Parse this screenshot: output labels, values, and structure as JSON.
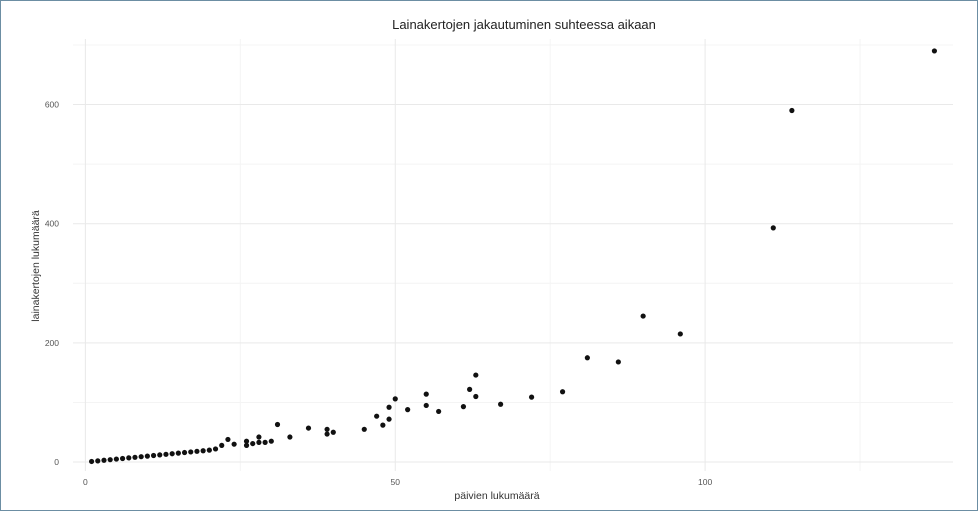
{
  "chart_data": {
    "type": "scatter",
    "title": "Lainakertojen jakautuminen suhteessa aikaan",
    "xlabel": "päivien lukumäärä",
    "ylabel": "lainakertojen lukumäärä",
    "xlim": [
      -2,
      140
    ],
    "ylim": [
      -15,
      710
    ],
    "x_ticks": [
      0,
      50,
      100
    ],
    "y_ticks": [
      0,
      200,
      400,
      600
    ],
    "x_tick_labels": [
      "0",
      "50",
      "100"
    ],
    "y_tick_labels": [
      "0",
      "200",
      "400",
      "600"
    ],
    "grid": true,
    "legend": "none",
    "point_color": "#111111",
    "series": [
      {
        "points": [
          [
            1,
            1
          ],
          [
            2,
            2
          ],
          [
            3,
            3
          ],
          [
            4,
            4
          ],
          [
            5,
            5
          ],
          [
            6,
            6
          ],
          [
            7,
            7
          ],
          [
            8,
            8
          ],
          [
            9,
            9
          ],
          [
            10,
            10
          ],
          [
            11,
            11
          ],
          [
            12,
            12
          ],
          [
            13,
            13
          ],
          [
            14,
            14
          ],
          [
            15,
            15
          ],
          [
            16,
            16
          ],
          [
            17,
            17
          ],
          [
            18,
            18
          ],
          [
            19,
            19
          ],
          [
            20,
            20
          ],
          [
            21,
            22
          ],
          [
            22,
            28
          ],
          [
            23,
            38
          ],
          [
            24,
            30
          ],
          [
            26,
            28
          ],
          [
            26,
            35
          ],
          [
            27,
            31
          ],
          [
            28,
            33
          ],
          [
            28,
            42
          ],
          [
            29,
            33
          ],
          [
            30,
            35
          ],
          [
            31,
            63
          ],
          [
            33,
            42
          ],
          [
            36,
            57
          ],
          [
            39,
            47
          ],
          [
            39,
            55
          ],
          [
            40,
            50
          ],
          [
            45,
            55
          ],
          [
            47,
            77
          ],
          [
            48,
            62
          ],
          [
            49,
            72
          ],
          [
            49,
            92
          ],
          [
            50,
            106
          ],
          [
            52,
            88
          ],
          [
            55,
            95
          ],
          [
            55,
            114
          ],
          [
            57,
            85
          ],
          [
            61,
            93
          ],
          [
            62,
            122
          ],
          [
            63,
            146
          ],
          [
            63,
            110
          ],
          [
            67,
            97
          ],
          [
            72,
            109
          ],
          [
            77,
            118
          ],
          [
            81,
            175
          ],
          [
            86,
            168
          ],
          [
            90,
            245
          ],
          [
            96,
            215
          ],
          [
            111,
            393
          ],
          [
            114,
            590
          ],
          [
            137,
            690
          ]
        ]
      }
    ]
  }
}
